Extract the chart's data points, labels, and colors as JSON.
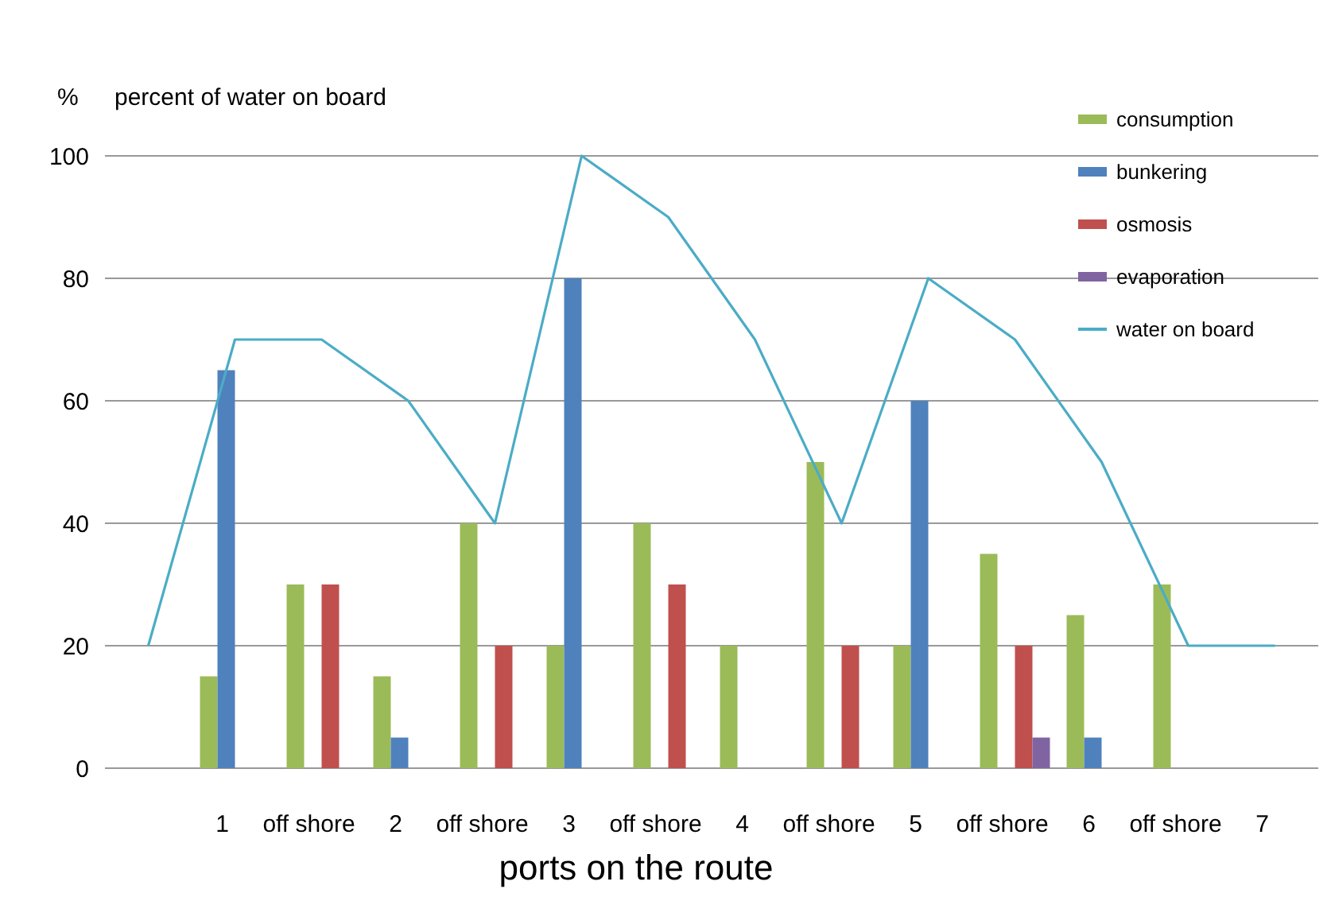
{
  "chart_data": {
    "type": "bar",
    "title": "percent of water on board",
    "ylabel": "%",
    "xlabel": "ports on the route",
    "categories": [
      null,
      "1",
      "off shore",
      "2",
      "off shore",
      "3",
      "off shore",
      "4",
      "off shore",
      "5",
      "off shore",
      "6",
      "off shore",
      "7"
    ],
    "series": [
      {
        "name": "consumption",
        "color": "#9bbb59",
        "values": [
          null,
          15,
          30,
          15,
          40,
          20,
          40,
          20,
          50,
          20,
          35,
          25,
          30,
          null
        ]
      },
      {
        "name": "bunkering",
        "color": "#4f81bd",
        "values": [
          null,
          65,
          null,
          5,
          null,
          80,
          null,
          null,
          null,
          60,
          null,
          5,
          null,
          null
        ]
      },
      {
        "name": "osmosis",
        "color": "#c0504d",
        "values": [
          null,
          null,
          30,
          null,
          20,
          null,
          30,
          null,
          20,
          null,
          20,
          null,
          null,
          null
        ]
      },
      {
        "name": "evaporation",
        "color": "#8064a2",
        "values": [
          null,
          null,
          null,
          null,
          null,
          null,
          null,
          null,
          null,
          null,
          5,
          null,
          null,
          null
        ]
      },
      {
        "name": "water on board",
        "type": "line",
        "color": "#4bacc6",
        "values": [
          20,
          70,
          70,
          60,
          40,
          100,
          90,
          70,
          40,
          80,
          70,
          50,
          20,
          20
        ]
      }
    ],
    "ylim": [
      0,
      100
    ],
    "yticks": [
      0,
      20,
      40,
      60,
      80,
      100
    ],
    "grid": "y",
    "legend": "top right"
  }
}
